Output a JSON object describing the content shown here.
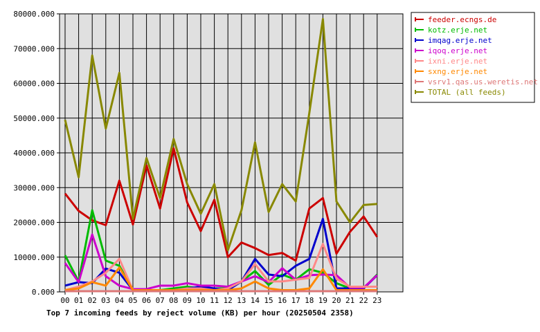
{
  "chart_data": {
    "type": "line",
    "caption": "Top 7 incoming feeds by reject volume (KB) per hour (20250504 2358)",
    "categories": [
      "00",
      "01",
      "02",
      "03",
      "04",
      "05",
      "06",
      "07",
      "08",
      "09",
      "10",
      "11",
      "12",
      "13",
      "14",
      "15",
      "16",
      "17",
      "18",
      "19",
      "20",
      "21",
      "22",
      "23"
    ],
    "ylim": [
      0,
      80000
    ],
    "yticks": [
      0,
      10000,
      20000,
      30000,
      40000,
      50000,
      60000,
      70000,
      80000
    ],
    "ytick_labels": [
      "0.000",
      "10000.000",
      "20000.000",
      "30000.000",
      "40000.000",
      "50000.000",
      "60000.000",
      "70000.000",
      "80000.000"
    ],
    "grid": true,
    "legend_position": "right",
    "series": [
      {
        "name": "feeder.ecngs.de",
        "color": "#cc0000",
        "values": [
          28300,
          23300,
          20600,
          19200,
          32000,
          19400,
          36400,
          24000,
          41300,
          25700,
          17500,
          26500,
          10000,
          14200,
          12600,
          10600,
          11200,
          9000,
          24000,
          27000,
          11000,
          17300,
          21700,
          15800
        ]
      },
      {
        "name": "kotz.erje.net",
        "color": "#00bb00",
        "values": [
          10500,
          3000,
          23500,
          9000,
          7500,
          500,
          500,
          500,
          1000,
          1500,
          1000,
          1000,
          1000,
          3000,
          6000,
          2000,
          5000,
          3500,
          6500,
          5500,
          2500,
          1000,
          1000,
          5000
        ]
      },
      {
        "name": "imqag.erje.net",
        "color": "#0000cc",
        "values": [
          1800,
          2800,
          2500,
          6700,
          5500,
          500,
          500,
          500,
          500,
          1000,
          1500,
          1000,
          500,
          3000,
          9500,
          5000,
          4500,
          7500,
          9500,
          21000,
          1000,
          1000,
          1000,
          4800
        ]
      },
      {
        "name": "iqoq.erje.net",
        "color": "#cc00cc",
        "values": [
          8300,
          2800,
          16500,
          4500,
          1800,
          800,
          800,
          1800,
          1800,
          2500,
          1800,
          1800,
          1500,
          3000,
          4500,
          2800,
          6800,
          3500,
          4800,
          5000,
          4800,
          1200,
          1200,
          4800
        ]
      },
      {
        "name": "ixni.erje.net",
        "color": "#ff8888",
        "values": [
          500,
          1500,
          3000,
          5500,
          9500,
          500,
          500,
          500,
          500,
          1000,
          1000,
          500,
          1000,
          3000,
          8000,
          3000,
          3000,
          3500,
          4000,
          13800,
          3800,
          1500,
          1500,
          1500
        ]
      },
      {
        "name": "sxng.erje.net",
        "color": "#ff8800",
        "values": [
          500,
          1000,
          2800,
          1800,
          7000,
          500,
          500,
          500,
          500,
          500,
          500,
          500,
          500,
          1000,
          3000,
          1000,
          500,
          500,
          1000,
          6500,
          500,
          500,
          500,
          500
        ]
      },
      {
        "name": "vsrv1.qas.us.weretis.net",
        "color": "#dd7777",
        "values": [
          200,
          200,
          200,
          200,
          200,
          200,
          200,
          200,
          200,
          200,
          200,
          200,
          200,
          200,
          200,
          200,
          200,
          200,
          200,
          200,
          200,
          200,
          200,
          200
        ]
      },
      {
        "name": "TOTAL (all feeds)",
        "color": "#888800",
        "values": [
          49500,
          33000,
          68000,
          47000,
          63000,
          21000,
          38500,
          27000,
          44000,
          31000,
          22500,
          31000,
          12000,
          23500,
          43000,
          23000,
          31000,
          26000,
          51500,
          78500,
          26000,
          20000,
          25000,
          25300
        ]
      }
    ]
  }
}
